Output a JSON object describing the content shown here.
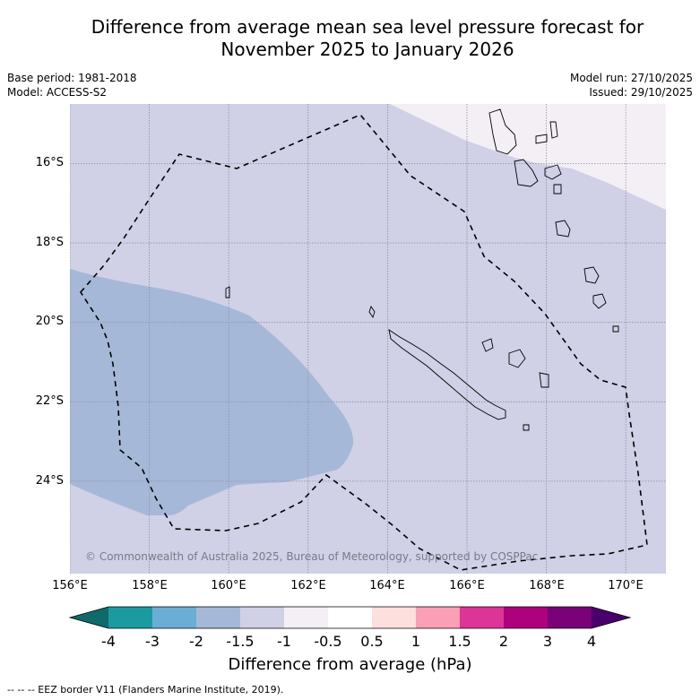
{
  "title_line1": "Difference from average mean sea level pressure forecast for",
  "title_line2": "November 2025 to January 2026",
  "base_period": "Base period: 1981-2018",
  "model": "Model: ACCESS-S2",
  "model_run": "Model run: 27/10/2025",
  "issued": "Issued: 29/10/2025",
  "lat_labels": [
    "16°S",
    "18°S",
    "20°S",
    "22°S",
    "24°S"
  ],
  "lon_labels": [
    "156°E",
    "158°E",
    "160°E",
    "162°E",
    "164°E",
    "166°E",
    "168°E",
    "170°E"
  ],
  "copyright": "© Commonwealth of Australia 2025, Bureau of Meteorology, supported by COSPPac",
  "colorbar": {
    "title": "Difference from average (hPa)",
    "tick_labels": [
      "-4",
      "-3",
      "-2",
      "-1.5",
      "-1",
      "-0.5",
      "0.5",
      "1",
      "1.5",
      "2",
      "3",
      "4"
    ],
    "colors": [
      "#0f6b6b",
      "#1b9a9f",
      "#6aaed6",
      "#a6b8d8",
      "#d0d0e6",
      "#f3eff5",
      "#ffffff",
      "#fde0dd",
      "#fa9fb5",
      "#dd3497",
      "#ae017e",
      "#7a0177",
      "#49006a"
    ]
  },
  "footnote": "--  --  -- EEZ border V11 (Flanders Marine Institute, 2019)."
}
